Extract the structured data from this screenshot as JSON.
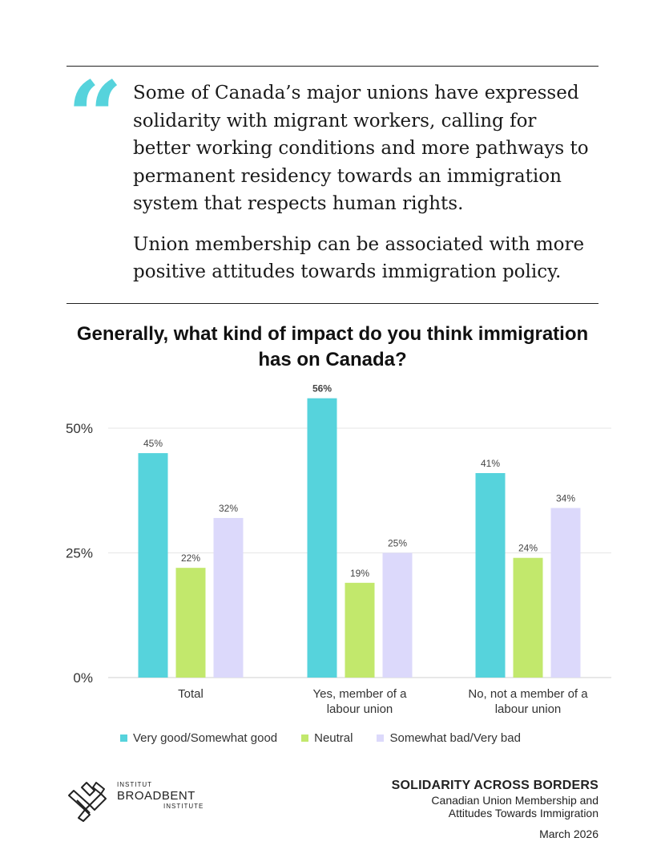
{
  "quote": {
    "mark": "“",
    "paragraph1": "Some of Canada’s major unions have expressed solidarity with migrant workers, calling for better working conditions and more pathways to permanent residency towards an immigration system that respects human rights.",
    "paragraph2": "Union membership can be associated with more positive attitudes towards immigration policy."
  },
  "chart_data": {
    "type": "bar",
    "title": "Generally, what kind of impact do you think immigration has on Canada?",
    "categories": [
      [
        "Total"
      ],
      [
        "Yes, member of a",
        "labour union"
      ],
      [
        "No, not a member of a",
        "labour union"
      ]
    ],
    "series": [
      {
        "name": "Very good/Somewhat good",
        "values": [
          45,
          56,
          41
        ],
        "labels": [
          "45%",
          "56%",
          "41%"
        ],
        "color": "#56d3dc"
      },
      {
        "name": "Neutral",
        "values": [
          22,
          19,
          24
        ],
        "labels": [
          "22%",
          "19%",
          "24%"
        ],
        "color": "#c2e86c"
      },
      {
        "name": "Somewhat bad/Very bad",
        "values": [
          32,
          25,
          34
        ],
        "labels": [
          "32%",
          "25%",
          "34%"
        ],
        "color": "#dcd9fb"
      }
    ],
    "ylim": [
      0,
      60
    ],
    "yticks": [
      {
        "value": 0,
        "label": "0%"
      },
      {
        "value": 25,
        "label": "25%"
      },
      {
        "value": 50,
        "label": "50%"
      }
    ],
    "grid": true,
    "legend": "bottom"
  },
  "footer": {
    "logo_line1": "INSTITUT",
    "logo_line2": "BROADBENT",
    "logo_line3": "INSTITUTE",
    "title": "SOLIDARITY ACROSS BORDERS",
    "subtitle1": "Canadian Union Membership and",
    "subtitle2": "Attitudes Towards Immigration",
    "date": "March 2026"
  }
}
